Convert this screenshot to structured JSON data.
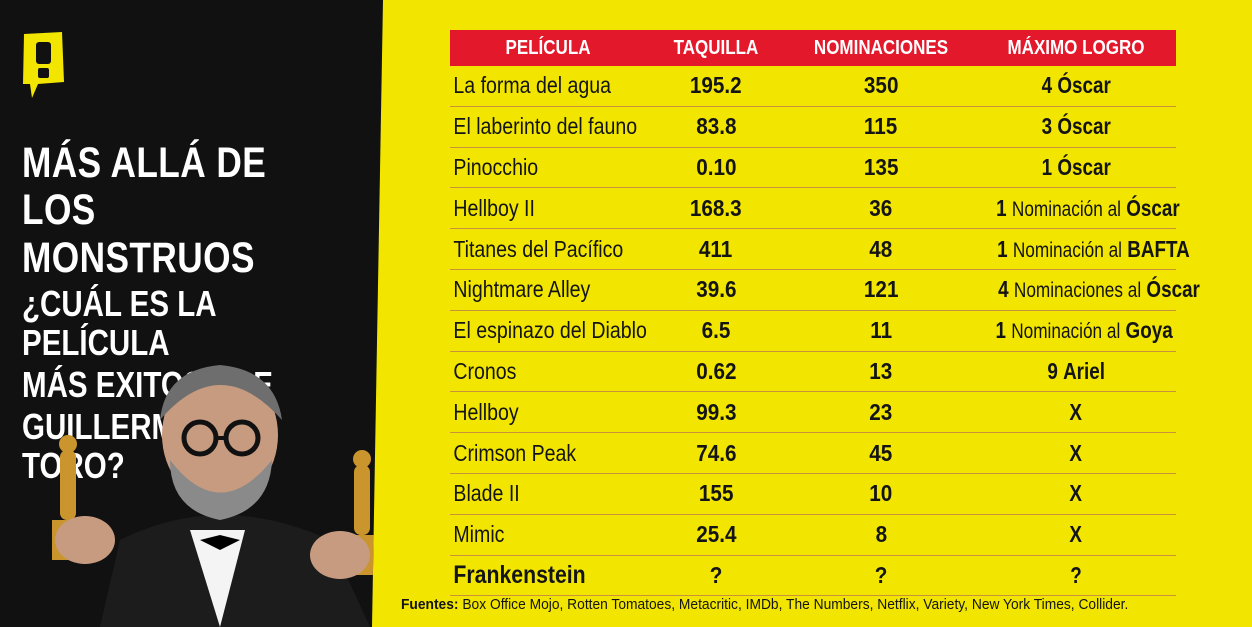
{
  "headline": {
    "line1": "MÁS ALLÁ DE",
    "line2": "LOS MONSTRUOS",
    "line3": "¿CUÁL ES LA PELÍCULA",
    "line4": "MÁS EXITOSA DE",
    "line5": "GUILLERMO DEL TORO?"
  },
  "colors": {
    "background": "#f2e600",
    "panel": "#111111",
    "header": "#e4182b",
    "logo": "#f2e600"
  },
  "table": {
    "headers": [
      "PELÍCULA",
      "TAQUILLA",
      "NOMINACIONES",
      "MÁXIMO LOGRO"
    ],
    "rows": [
      {
        "film": "La forma del agua",
        "box": "195.2",
        "noms": "350",
        "a_num": "4",
        "a_mid": "",
        "a_end": "Óscar"
      },
      {
        "film": "El laberinto del fauno",
        "box": "83.8",
        "noms": "115",
        "a_num": "3",
        "a_mid": "",
        "a_end": "Óscar"
      },
      {
        "film": "Pinocchio",
        "box": "0.10",
        "noms": "135",
        "a_num": "1",
        "a_mid": "",
        "a_end": "Óscar"
      },
      {
        "film": "Hellboy II",
        "box": "168.3",
        "noms": "36",
        "a_num": "1",
        "a_mid": "Nominación al",
        "a_end": "Óscar"
      },
      {
        "film": "Titanes del Pacífico",
        "box": "411",
        "noms": "48",
        "a_num": "1",
        "a_mid": "Nominación al",
        "a_end": "BAFTA"
      },
      {
        "film": "Nightmare Alley",
        "box": "39.6",
        "noms": "121",
        "a_num": "4",
        "a_mid": "Nominaciones al",
        "a_end": "Óscar"
      },
      {
        "film": "El espinazo del Diablo",
        "box": "6.5",
        "noms": "11",
        "a_num": "1",
        "a_mid": "Nominación al",
        "a_end": "Goya"
      },
      {
        "film": "Cronos",
        "box": "0.62",
        "noms": "13",
        "a_num": "9",
        "a_mid": "",
        "a_end": "Ariel"
      },
      {
        "film": "Hellboy",
        "box": "99.3",
        "noms": "23",
        "a_num": "",
        "a_mid": "",
        "a_end": "X"
      },
      {
        "film": "Crimson Peak",
        "box": "74.6",
        "noms": "45",
        "a_num": "",
        "a_mid": "",
        "a_end": "X"
      },
      {
        "film": "Blade II",
        "box": "155",
        "noms": "10",
        "a_num": "",
        "a_mid": "",
        "a_end": "X"
      },
      {
        "film": "Mimic",
        "box": "25.4",
        "noms": "8",
        "a_num": "",
        "a_mid": "",
        "a_end": "X"
      },
      {
        "film": "Frankenstein",
        "box": "?",
        "noms": "?",
        "a_num": "",
        "a_mid": "",
        "a_end": "?"
      }
    ]
  },
  "sources": {
    "label": "Fuentes:",
    "text": "Box Office Mojo, Rotten Tomatoes, Metacritic, IMDb, The Numbers, Netflix, Variety, New York Times, Collider."
  }
}
